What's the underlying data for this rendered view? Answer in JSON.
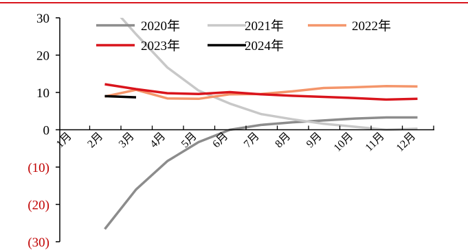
{
  "chart_data": {
    "type": "line",
    "categories": [
      "1月",
      "2月",
      "3月",
      "4月",
      "5月",
      "6月",
      "7月",
      "8月",
      "9月",
      "10月",
      "11月",
      "12月"
    ],
    "ylim": [
      -30,
      30
    ],
    "yticks": [
      {
        "value": 30,
        "label": "30"
      },
      {
        "value": 20,
        "label": "20"
      },
      {
        "value": 10,
        "label": "10"
      },
      {
        "value": 0,
        "label": "0"
      },
      {
        "value": -10,
        "label": "(10)"
      },
      {
        "value": -20,
        "label": "(20)"
      },
      {
        "value": -30,
        "label": "(30)"
      }
    ],
    "negative_tick_color": "#c00000",
    "legend_position": "top",
    "series": [
      {
        "name": "2020年",
        "color": "#8c8c8c",
        "values": [
          null,
          -26.6,
          -16.0,
          -8.4,
          -3.3,
          0.0,
          1.3,
          2.0,
          2.5,
          3.0,
          3.3,
          3.3
        ]
      },
      {
        "name": "2021年",
        "color": "#c8c8c8",
        "values": [
          null,
          35.0,
          25.6,
          16.7,
          10.5,
          7.0,
          4.2,
          2.8,
          1.6,
          0.8,
          0.0,
          0.3
        ]
      },
      {
        "name": "2022年",
        "color": "#f4956a",
        "values": [
          null,
          8.9,
          10.7,
          8.4,
          8.3,
          9.5,
          9.6,
          10.3,
          11.2,
          11.4,
          11.7,
          11.6
        ]
      },
      {
        "name": "2023年",
        "color": "#d9141c",
        "values": [
          null,
          12.2,
          10.9,
          9.8,
          9.6,
          10.1,
          9.5,
          9.1,
          8.8,
          8.5,
          8.1,
          8.3
        ]
      },
      {
        "name": "2024年",
        "color": "#000000",
        "values": [
          null,
          9.0,
          8.7,
          null,
          null,
          null,
          null,
          null,
          null,
          null,
          null,
          null
        ]
      }
    ]
  },
  "colors": {
    "top_rule": "#d9141c",
    "axis": "#000000"
  }
}
